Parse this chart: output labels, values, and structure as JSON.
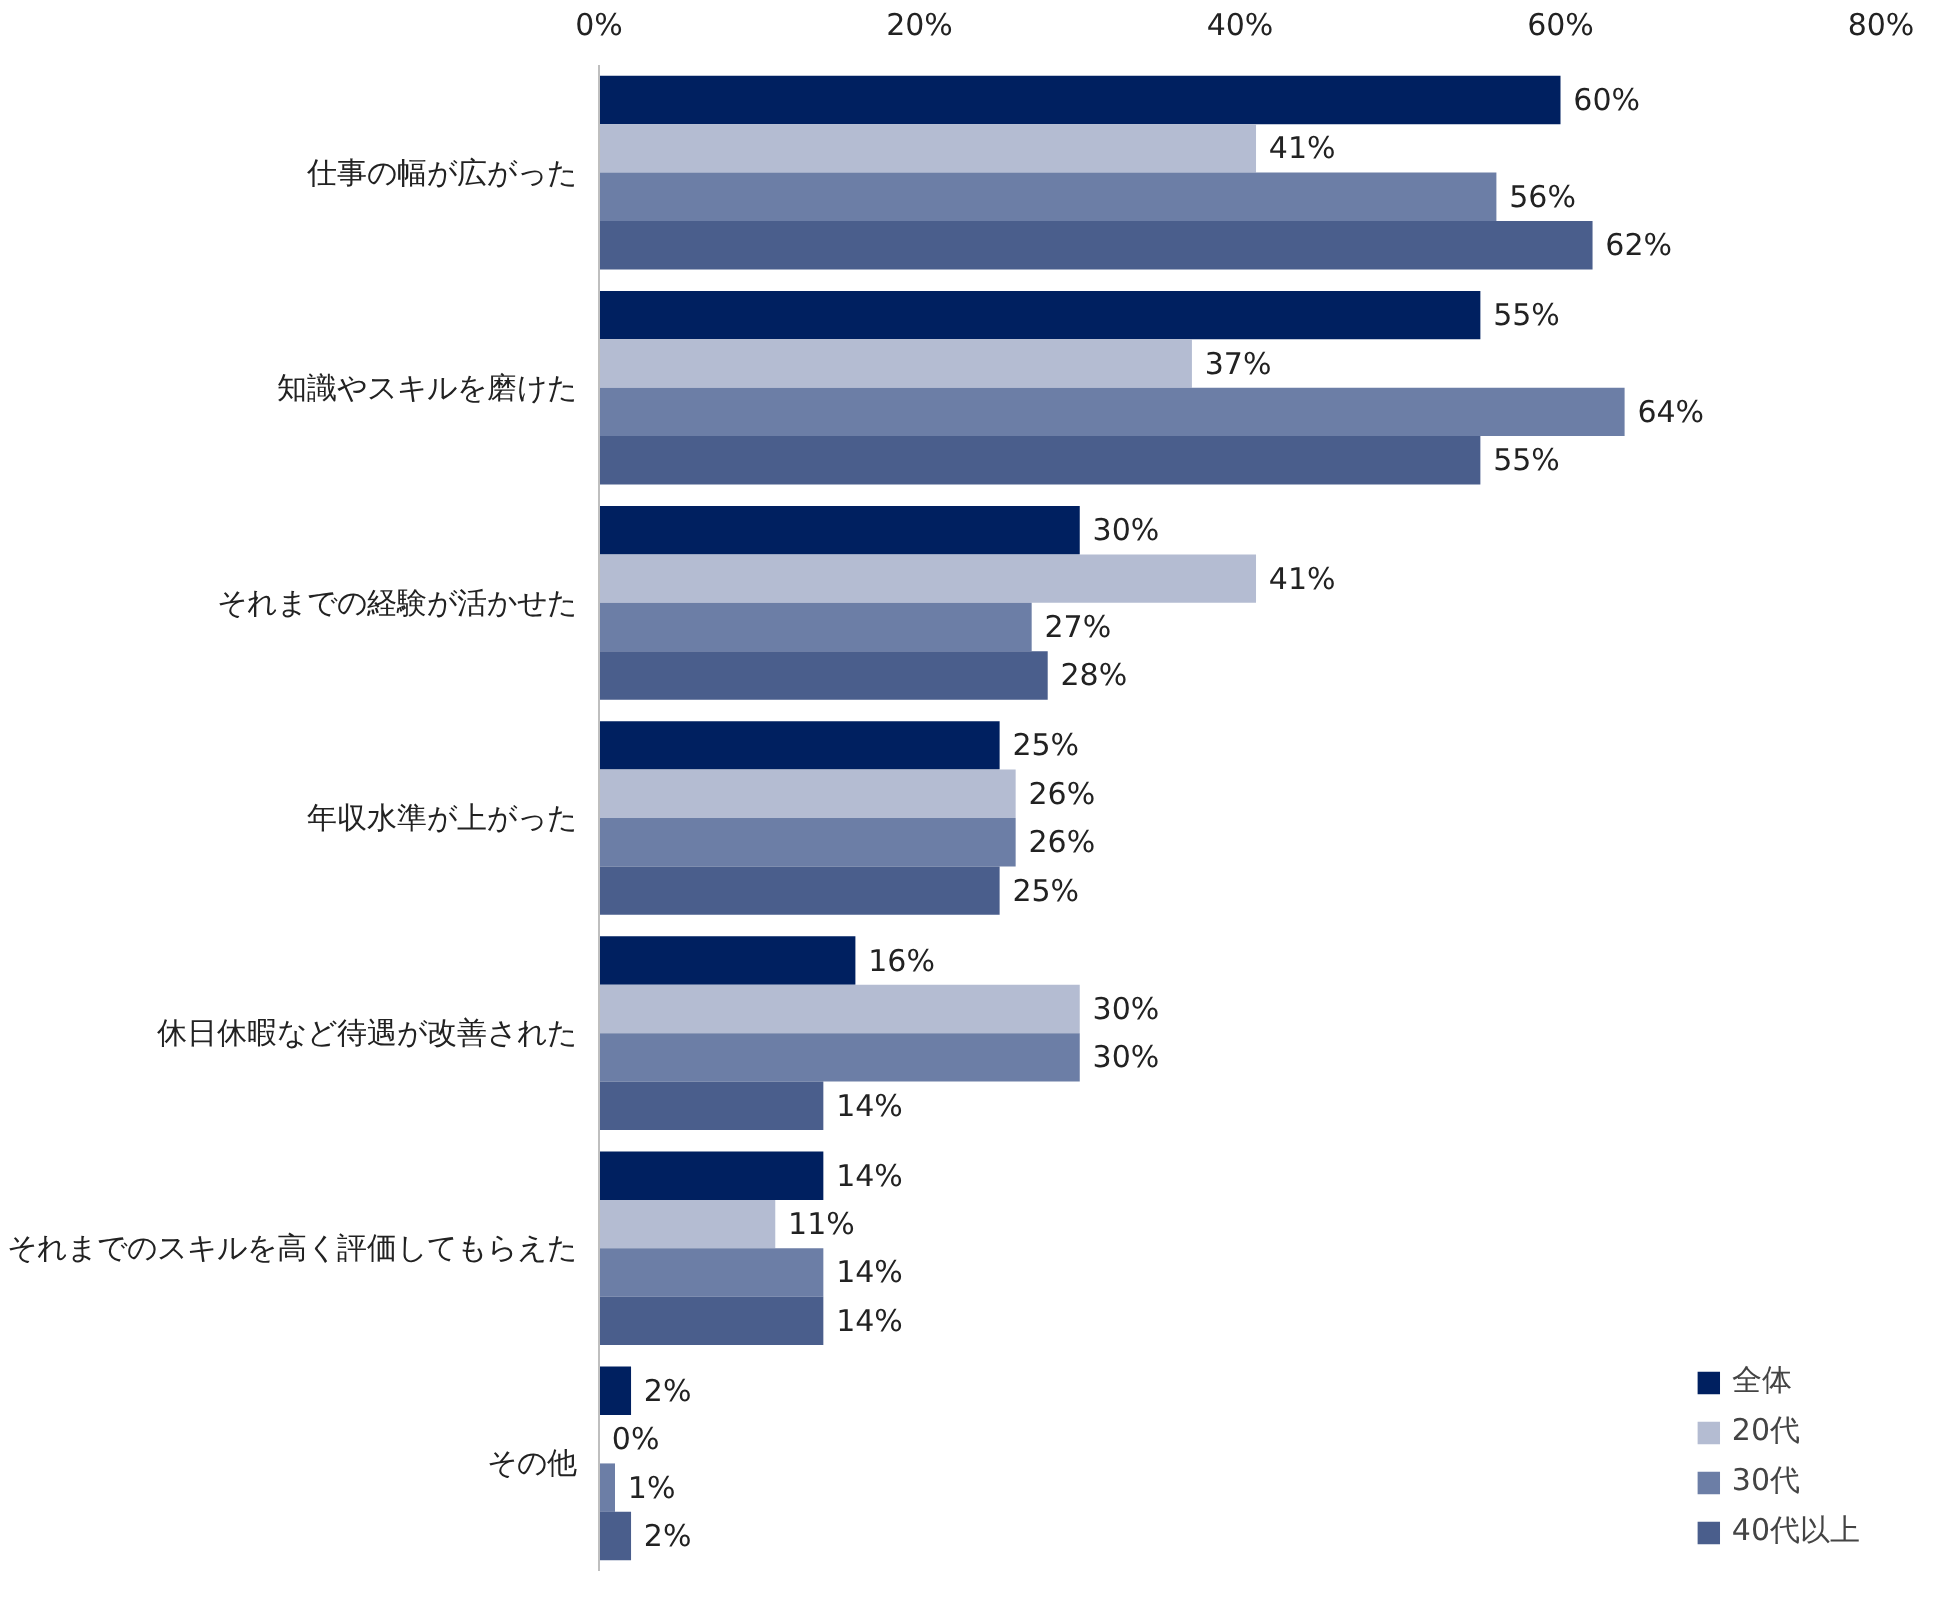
{
  "chart_data": {
    "type": "bar",
    "orientation": "horizontal",
    "categories": [
      "仕事の幅が広がった",
      "知識やスキルを磨けた",
      "それまでの経験が活かせた",
      "年収水準が上がった",
      "休日休暇など待遇が改善された",
      "それまでのスキルを高く評価してもらえた",
      "その他"
    ],
    "series": [
      {
        "name": "全体",
        "color": "#002060",
        "values": [
          60,
          55,
          30,
          25,
          16,
          14,
          2
        ],
        "value_labels": [
          "60%",
          "55%",
          "30%",
          "25%",
          "16%",
          "14%",
          "2%"
        ]
      },
      {
        "name": "20代",
        "color": "#b4bcd2",
        "values": [
          41,
          37,
          41,
          26,
          30,
          11,
          0
        ],
        "value_labels": [
          "41%",
          "37%",
          "41%",
          "26%",
          "30%",
          "11%",
          "0%"
        ]
      },
      {
        "name": "30代",
        "color": "#6c7ea6",
        "values": [
          56,
          64,
          27,
          26,
          30,
          14,
          1
        ],
        "value_labels": [
          "56%",
          "64%",
          "27%",
          "26%",
          "30%",
          "14%",
          "1%"
        ]
      },
      {
        "name": "40代以上",
        "color": "#4a5e8c",
        "values": [
          62,
          55,
          28,
          25,
          14,
          14,
          2
        ],
        "value_labels": [
          "62%",
          "55%",
          "28%",
          "25%",
          "14%",
          "14%",
          "2%"
        ]
      }
    ],
    "xlim": [
      0,
      80
    ],
    "xticks": [
      {
        "value": 0,
        "label": "0%"
      },
      {
        "value": 20,
        "label": "20%"
      },
      {
        "value": 40,
        "label": "40%"
      },
      {
        "value": 60,
        "label": "60%"
      },
      {
        "value": 80,
        "label": "80%"
      }
    ],
    "grid": false,
    "legend": "bottom right"
  }
}
